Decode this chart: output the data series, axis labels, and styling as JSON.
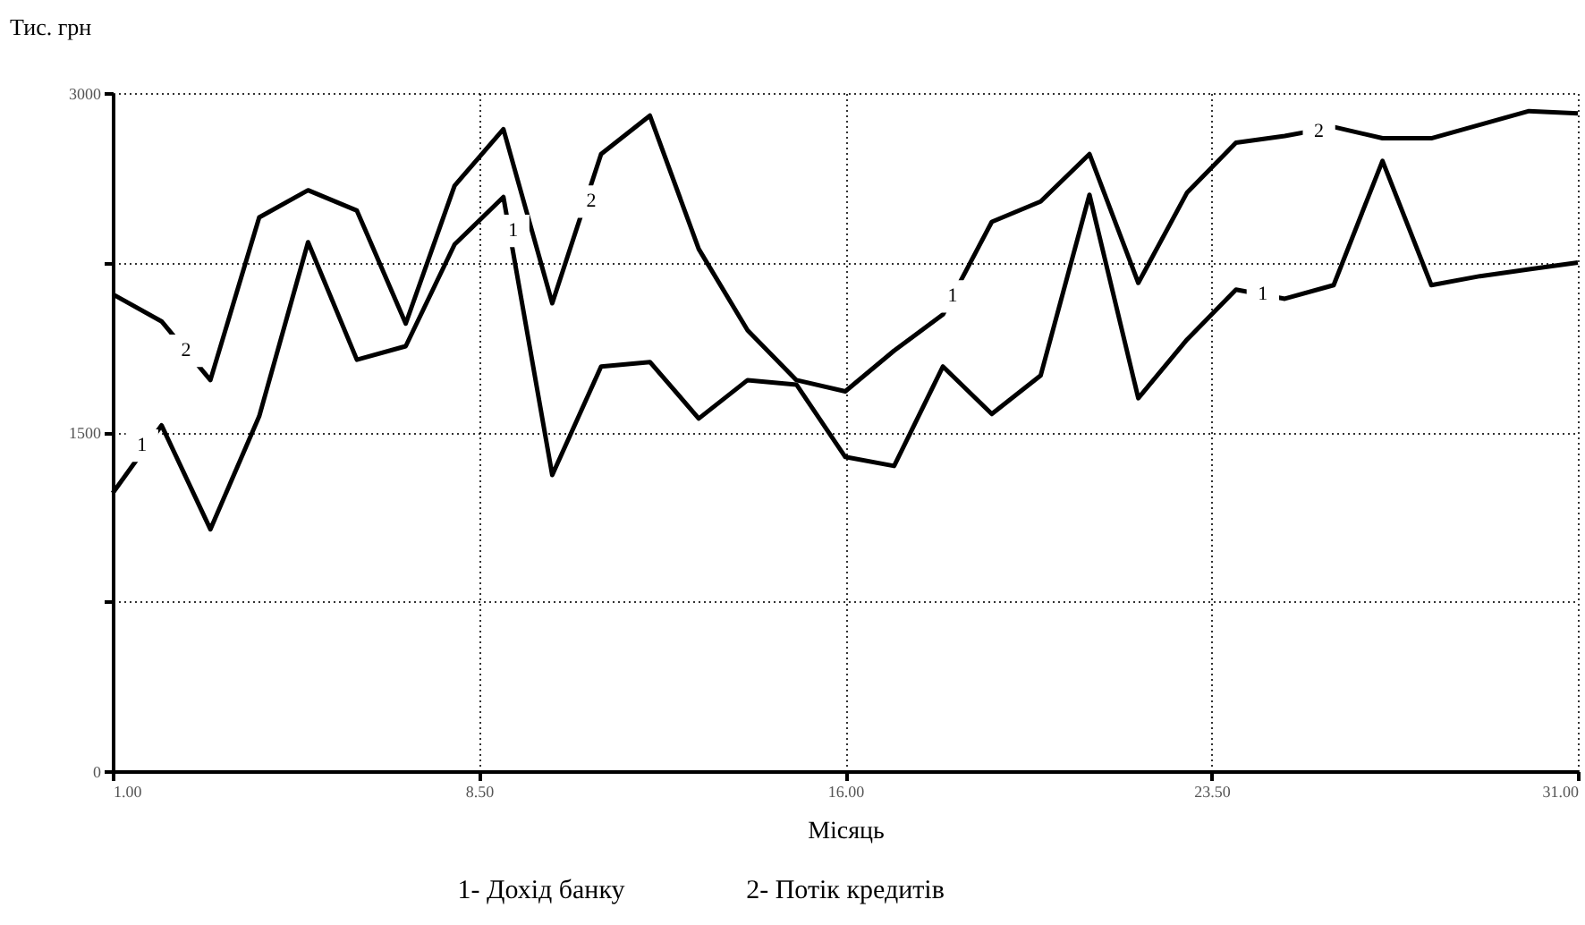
{
  "chart_data": {
    "type": "line",
    "xlabel": "Місяць",
    "ylabel": "Тис. грн",
    "x": [
      1,
      2,
      3,
      4,
      5,
      6,
      7,
      8,
      9,
      10,
      11,
      12,
      13,
      14,
      15,
      16,
      17,
      18,
      19,
      20,
      21,
      22,
      23,
      24,
      25,
      26,
      27,
      28,
      29,
      30,
      31
    ],
    "series": [
      {
        "color": "#000000",
        "values": [
          2110,
          1990,
          1730,
          2450,
          2570,
          2480,
          1980,
          2590,
          2840,
          2070,
          2730,
          2900,
          2310,
          1950,
          1730,
          1680,
          1860,
          2020,
          2430,
          2520,
          2730,
          2160,
          2560,
          2780,
          2810,
          2850,
          2800,
          2800,
          2860,
          2920,
          2910
        ]
      },
      {
        "color": "#000000",
        "values": [
          1230,
          1530,
          1070,
          1570,
          2340,
          1820,
          1880,
          2330,
          2540,
          1310,
          1790,
          1810,
          1560,
          1730,
          1710,
          1390,
          1350,
          1790,
          1580,
          1750,
          2550,
          1650,
          1910,
          2130,
          2090,
          2150,
          2700,
          2150,
          2190,
          2220,
          2250
        ]
      }
    ],
    "xlim": [
      1,
      31
    ],
    "xticks": [
      {
        "value": 1,
        "label": "1.00"
      },
      {
        "value": 8.5,
        "label": "8.50"
      },
      {
        "value": 16,
        "label": "16.00"
      },
      {
        "value": 23.5,
        "label": "23.50"
      },
      {
        "value": 31,
        "label": "31.00"
      }
    ],
    "ylim": [
      0,
      3000
    ],
    "yticks": [
      0,
      {
        "value": 750,
        "label": null
      },
      1500,
      {
        "value": 2250,
        "label": null
      },
      3000
    ],
    "grid": true,
    "line_style": "solid",
    "annotations": [
      {
        "text": "2",
        "x": 2.5,
        "y": 1860
      },
      {
        "text": "1",
        "x": 1.6,
        "y": 1440
      },
      {
        "text": "1",
        "x": 9.2,
        "y": 2390
      },
      {
        "text": "2",
        "x": 10.8,
        "y": 2520
      },
      {
        "text": "1",
        "x": 18.2,
        "y": 2100
      },
      {
        "text": "1",
        "x": 24.55,
        "y": 2110
      },
      {
        "text": "2",
        "x": 25.7,
        "y": 2830
      },
      "1- Дохід банку",
      "2- Потік кредитів"
    ]
  }
}
